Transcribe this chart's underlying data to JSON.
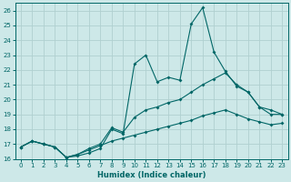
{
  "xlabel": "Humidex (Indice chaleur)",
  "bg_color": "#cde8e8",
  "grid_color": "#b0d0d0",
  "line_color": "#006666",
  "xlim": [
    -0.5,
    23.5
  ],
  "ylim": [
    16,
    26.5
  ],
  "yticks": [
    16,
    17,
    18,
    19,
    20,
    21,
    22,
    23,
    24,
    25,
    26
  ],
  "xticks": [
    0,
    1,
    2,
    3,
    4,
    5,
    6,
    7,
    8,
    9,
    10,
    11,
    12,
    13,
    14,
    15,
    16,
    17,
    18,
    19,
    20,
    21,
    22,
    23
  ],
  "line1_y": [
    16.8,
    17.2,
    17.0,
    16.8,
    16.1,
    16.2,
    16.4,
    16.7,
    18.0,
    17.7,
    22.4,
    23.0,
    21.2,
    21.5,
    21.3,
    25.1,
    26.2,
    23.2,
    21.9,
    20.9,
    20.5,
    19.5,
    19.0,
    19.0
  ],
  "line2_y": [
    16.8,
    17.2,
    17.0,
    16.8,
    16.1,
    16.3,
    16.7,
    17.0,
    18.1,
    17.8,
    18.8,
    19.3,
    19.5,
    19.8,
    20.0,
    20.5,
    21.0,
    21.4,
    21.8,
    21.0,
    20.5,
    19.5,
    19.3,
    19.0
  ],
  "line3_y": [
    16.8,
    17.2,
    17.0,
    16.8,
    16.1,
    16.3,
    16.6,
    16.9,
    17.2,
    17.4,
    17.6,
    17.8,
    18.0,
    18.2,
    18.4,
    18.6,
    18.9,
    19.1,
    19.3,
    19.0,
    18.7,
    18.5,
    18.3,
    18.4
  ]
}
